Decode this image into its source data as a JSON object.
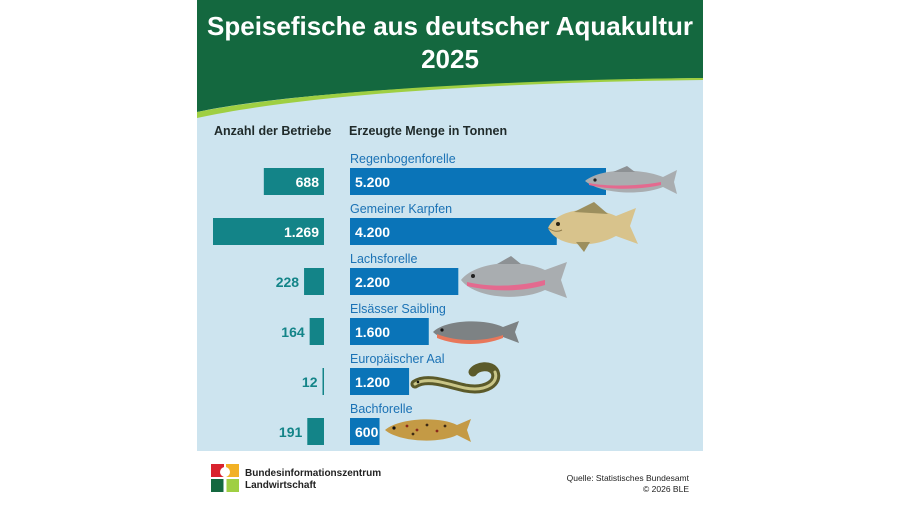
{
  "chart_data": {
    "type": "bar",
    "title": "Speisefische aus deutscher Aquakultur 2025",
    "left_header": "Anzahl der Betriebe",
    "right_header": "Erzeugte Menge in Tonnen",
    "categories": [
      "Regenbogenforelle",
      "Gemeiner Karpfen",
      "Lachsforelle",
      "Elsässer Saibling",
      "Europäischer Aal",
      "Bachforelle"
    ],
    "series": [
      {
        "name": "Anzahl der Betriebe",
        "values": [
          688,
          1269,
          228,
          164,
          12,
          191
        ],
        "labels": [
          "688",
          "1.269",
          "228",
          "164",
          "12",
          "191"
        ]
      },
      {
        "name": "Erzeugte Menge in Tonnen",
        "values": [
          5200,
          4200,
          2200,
          1600,
          1200,
          600
        ],
        "labels": [
          "5.200",
          "4.200",
          "2.200",
          "1.600",
          "1.200",
          "600"
        ]
      }
    ],
    "colors": {
      "betriebe": "#138488",
      "menge": "#0a74b8",
      "header": "#14683f",
      "background": "#cde4ef",
      "category_text": "#1b72b5"
    }
  },
  "footer": {
    "org_line1": "Bundesinformationszentrum",
    "org_line2": "Landwirtschaft",
    "source_line1": "Quelle: Statistisches Bundesamt",
    "source_line2": "© 2026 BLE"
  },
  "icons": [
    "rainbow-trout-icon",
    "carp-icon",
    "salmon-trout-icon",
    "char-icon",
    "eel-icon",
    "brown-trout-icon",
    "ble-logo-icon"
  ]
}
